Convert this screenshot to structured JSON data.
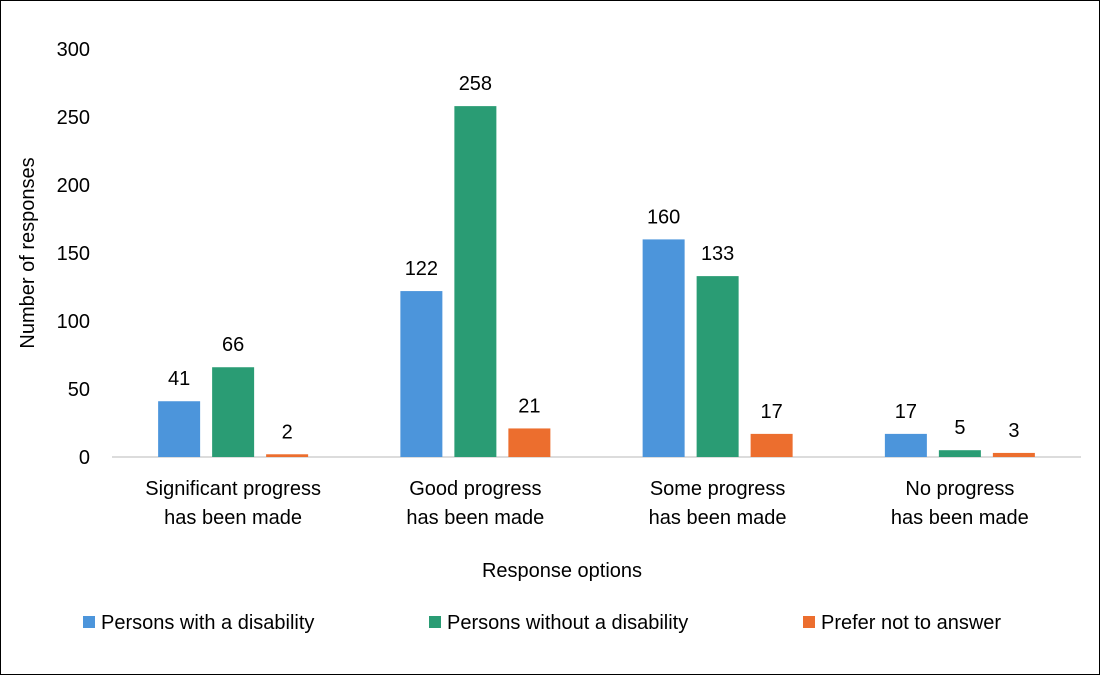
{
  "chart_data": {
    "type": "bar",
    "categories": [
      [
        "Significant progress",
        "has been made"
      ],
      [
        "Good progress",
        "has been made"
      ],
      [
        "Some progress",
        "has been made"
      ],
      [
        "No progress",
        "has been made"
      ]
    ],
    "series": [
      {
        "name": "Persons with a disability",
        "color": "#4C95DB",
        "values": [
          41,
          122,
          160,
          17
        ]
      },
      {
        "name": "Persons without a disability",
        "color": "#2A9C74",
        "values": [
          66,
          258,
          133,
          5
        ]
      },
      {
        "name": "Prefer not to answer",
        "color": "#EC6E2E",
        "values": [
          2,
          21,
          17,
          3
        ]
      }
    ],
    "xlabel": "Response options",
    "ylabel": "Number of responses",
    "ylim": [
      0,
      300
    ],
    "yticks": [
      0,
      50,
      100,
      150,
      200,
      250,
      300
    ],
    "grid": false,
    "legend": "bottom",
    "data_labels": true
  }
}
